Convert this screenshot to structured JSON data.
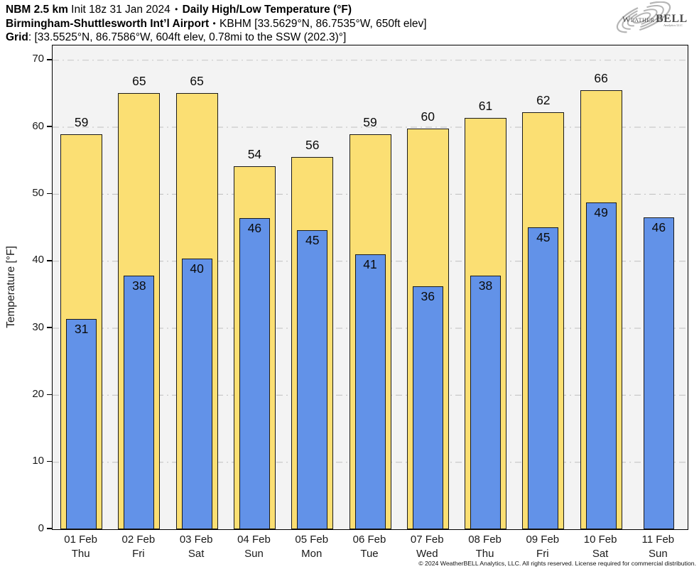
{
  "header": {
    "model": "NBM 2.5 km",
    "init": " Init 18z 31 Jan 2024 ",
    "bullet": "•",
    "product": " Daily High/Low Temperature (°F)",
    "station": "Birmingham-Shuttlesworth Intʼl Airport",
    "station_sep": " • ",
    "station_meta": "KBHM [33.5629°N, 86.7535°W, 650ft elev]",
    "grid_label": "Grid",
    "grid_meta": ": [33.5525°N, 86.7586°W, 604ft elev, 0.78mi to the SSW (202.3)°]"
  },
  "logo": {
    "word_a": "Weather",
    "word_b": "BELL",
    "tagline": "Analytics LLC"
  },
  "chart_data": {
    "type": "bar",
    "title": "Daily High/Low Temperature (°F)",
    "ylabel": "Temperature [°F]",
    "ylim": [
      0,
      72.2
    ],
    "yticks": [
      0,
      10,
      20,
      30,
      40,
      50,
      60,
      70
    ],
    "grid": "horizontal dash-dot gridlines at every 10°F",
    "legend_position": "none",
    "plot_background": "#f3f3f3",
    "gridline_color": "#c4c4c4",
    "bar_border_color": "#1a1a1a",
    "categories": [
      "01 Feb",
      "02 Feb",
      "03 Feb",
      "04 Feb",
      "05 Feb",
      "06 Feb",
      "07 Feb",
      "08 Feb",
      "09 Feb",
      "10 Feb",
      "11 Feb"
    ],
    "weekdays": [
      "Thu",
      "Fri",
      "Sat",
      "Sun",
      "Mon",
      "Tue",
      "Wed",
      "Thu",
      "Fri",
      "Sat",
      "Sun"
    ],
    "series": [
      {
        "name": "High",
        "color": "#fbdf73",
        "labels": [
          59,
          65,
          65,
          54,
          56,
          59,
          60,
          61,
          62,
          66,
          null
        ],
        "values": [
          59.0,
          65.1,
          65.1,
          54.2,
          55.6,
          59.0,
          59.8,
          61.4,
          62.2,
          65.5,
          null
        ]
      },
      {
        "name": "Low",
        "color": "#6292e8",
        "labels": [
          31,
          38,
          40,
          46,
          45,
          41,
          36,
          38,
          45,
          49,
          46
        ],
        "values": [
          31.4,
          37.8,
          40.4,
          46.4,
          44.6,
          41.0,
          36.3,
          37.8,
          45.1,
          48.8,
          46.5
        ]
      }
    ]
  },
  "footer": {
    "copyright": "© 2024 WeatherBELL Analytics, LLC. All rights reserved. License required for commercial distribution."
  }
}
